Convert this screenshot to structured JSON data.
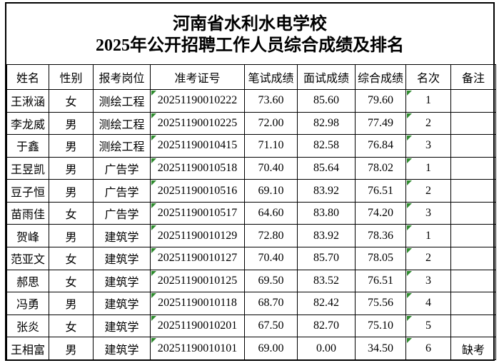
{
  "title": {
    "line1": "河南省水利水电学校",
    "line2": "2025年公开招聘工作人员综合成绩及排名"
  },
  "table": {
    "headers": [
      "姓名",
      "性别",
      "报考岗位",
      "准考证号",
      "笔试成绩",
      "面试成绩",
      "综合成绩",
      "名次",
      "备注"
    ],
    "column_keys": [
      "name",
      "gender",
      "position",
      "admission-number",
      "written-score",
      "interview-score",
      "composite-score",
      "rank",
      "remark"
    ],
    "marker_columns": [
      3,
      7
    ],
    "rows": [
      [
        "王湫涵",
        "女",
        "测绘工程",
        "20251190010222",
        "73.60",
        "85.60",
        "79.60",
        "1",
        ""
      ],
      [
        "李龙威",
        "男",
        "测绘工程",
        "20251190010225",
        "72.00",
        "82.98",
        "77.49",
        "2",
        ""
      ],
      [
        "于鑫",
        "男",
        "测绘工程",
        "20251190010415",
        "71.10",
        "82.58",
        "76.84",
        "3",
        ""
      ],
      [
        "王昱凯",
        "男",
        "广告学",
        "20251190010518",
        "70.40",
        "85.64",
        "78.02",
        "1",
        ""
      ],
      [
        "豆子恒",
        "男",
        "广告学",
        "20251190010516",
        "69.10",
        "83.92",
        "76.51",
        "2",
        ""
      ],
      [
        "苗雨佳",
        "女",
        "广告学",
        "20251190010517",
        "64.60",
        "83.80",
        "74.20",
        "3",
        ""
      ],
      [
        "贺峰",
        "男",
        "建筑学",
        "20251190010129",
        "72.80",
        "83.92",
        "78.36",
        "1",
        ""
      ],
      [
        "范亚文",
        "女",
        "建筑学",
        "20251190010127",
        "70.40",
        "85.70",
        "78.05",
        "2",
        ""
      ],
      [
        "郝思",
        "女",
        "建筑学",
        "20251190010125",
        "69.50",
        "83.52",
        "76.51",
        "3",
        ""
      ],
      [
        "冯勇",
        "男",
        "建筑学",
        "20251190010118",
        "68.70",
        "82.42",
        "75.56",
        "4",
        ""
      ],
      [
        "张炎",
        "女",
        "建筑学",
        "20251190010201",
        "67.50",
        "82.70",
        "75.10",
        "5",
        ""
      ],
      [
        "王相富",
        "男",
        "建筑学",
        "20251190010101",
        "69.00",
        "0.00",
        "34.50",
        "6",
        "缺考"
      ]
    ]
  },
  "colors": {
    "background": "#ffffff",
    "border": "#000000",
    "text": "#000000",
    "excel_marker_green": "#2e8b2e"
  }
}
